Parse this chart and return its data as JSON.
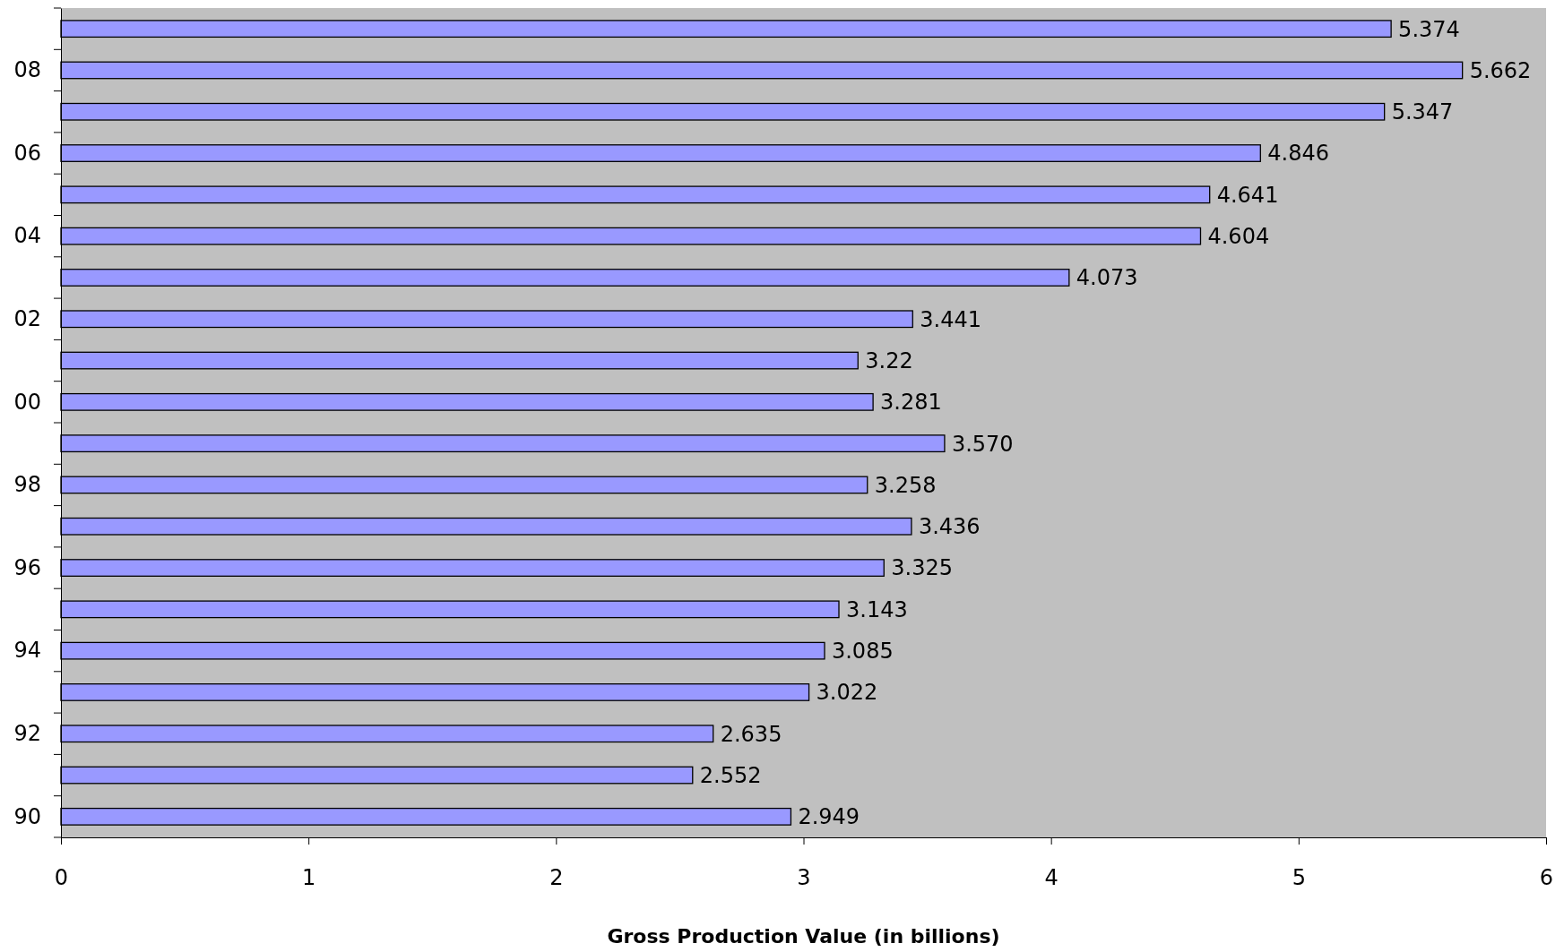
{
  "chart_data": {
    "type": "bar",
    "orientation": "horizontal",
    "xlabel": "Gross Production Value (in billions)",
    "categories": [
      null,
      "08",
      null,
      "06",
      null,
      "04",
      null,
      "02",
      null,
      "00",
      null,
      "98",
      null,
      "96",
      null,
      "94",
      null,
      "92",
      null,
      "90"
    ],
    "values": [
      5.374,
      5.662,
      5.347,
      4.846,
      4.641,
      4.604,
      4.073,
      3.441,
      3.22,
      3.281,
      3.57,
      3.258,
      3.436,
      3.325,
      3.143,
      3.085,
      3.022,
      2.635,
      2.552,
      2.949
    ],
    "value_labels": [
      "5.374",
      "5.662",
      "5.347",
      "4.846",
      "4.641",
      "4.604",
      "4.073",
      "3.441",
      "3.22",
      "3.281",
      "3.570",
      "3.258",
      "3.436",
      "3.325",
      "3.143",
      "3.085",
      "3.022",
      "2.635",
      "2.552",
      "2.949"
    ],
    "color": "#9999ff",
    "xlim": [
      0,
      6
    ],
    "xticks": [
      0,
      1,
      2,
      3,
      4,
      5,
      6
    ],
    "grid": false
  }
}
